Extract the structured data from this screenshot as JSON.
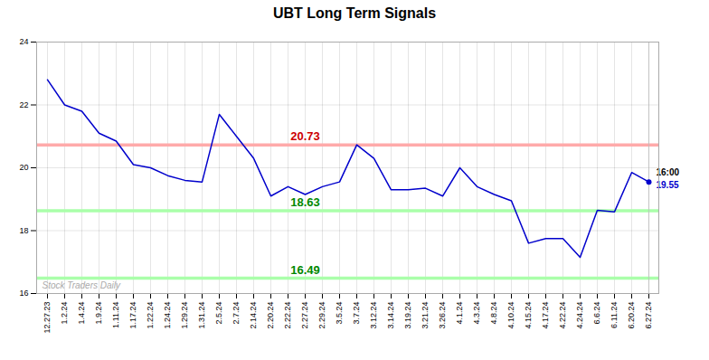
{
  "chart_data": {
    "type": "line",
    "title": "UBT Long Term Signals",
    "color": "#0000cc",
    "categories": [
      "12.27.23",
      "1.2.24",
      "1.4.24",
      "1.9.24",
      "1.11.24",
      "1.17.24",
      "1.22.24",
      "1.24.24",
      "1.29.24",
      "1.31.24",
      "2.5.24",
      "2.7.24",
      "2.14.24",
      "2.20.24",
      "2.22.24",
      "2.27.24",
      "2.29.24",
      "3.5.24",
      "3.7.24",
      "3.12.24",
      "3.14.24",
      "3.19.24",
      "3.21.24",
      "3.26.24",
      "4.1.24",
      "4.3.24",
      "4.8.24",
      "4.10.24",
      "4.15.24",
      "4.17.24",
      "4.22.24",
      "4.24.24",
      "6.6.24",
      "6.11.24",
      "6.20.24",
      "6.27.24"
    ],
    "values": [
      22.8,
      22.0,
      21.8,
      21.1,
      20.85,
      20.1,
      20.0,
      19.75,
      19.6,
      19.55,
      21.7,
      21.0,
      20.3,
      19.1,
      19.4,
      19.15,
      19.4,
      19.55,
      20.73,
      20.3,
      19.3,
      19.3,
      19.35,
      19.1,
      20.0,
      19.4,
      19.15,
      18.95,
      17.6,
      17.75,
      17.75,
      17.15,
      18.65,
      18.6,
      19.85,
      19.55
    ],
    "reference_lines": [
      {
        "value": 20.73,
        "color": "#ffaaaa",
        "label_color": "#cc0000"
      },
      {
        "value": 18.63,
        "color": "#aaffaa",
        "label_color": "#008800"
      },
      {
        "value": 16.49,
        "color": "#aaffaa",
        "label_color": "#008800"
      }
    ],
    "annotation": {
      "x": "6.27.24",
      "y": 19.55,
      "texts": [
        {
          "text": "16:00",
          "color": "black"
        },
        {
          "text": "19.55",
          "color": "#0000cc"
        }
      ]
    },
    "watermark": {
      "text": "Stock Traders Daily",
      "color": "#aaaaaa"
    },
    "ylim": [
      16,
      24
    ],
    "yticks": [
      16,
      18,
      20,
      22,
      24
    ],
    "grid": true
  }
}
